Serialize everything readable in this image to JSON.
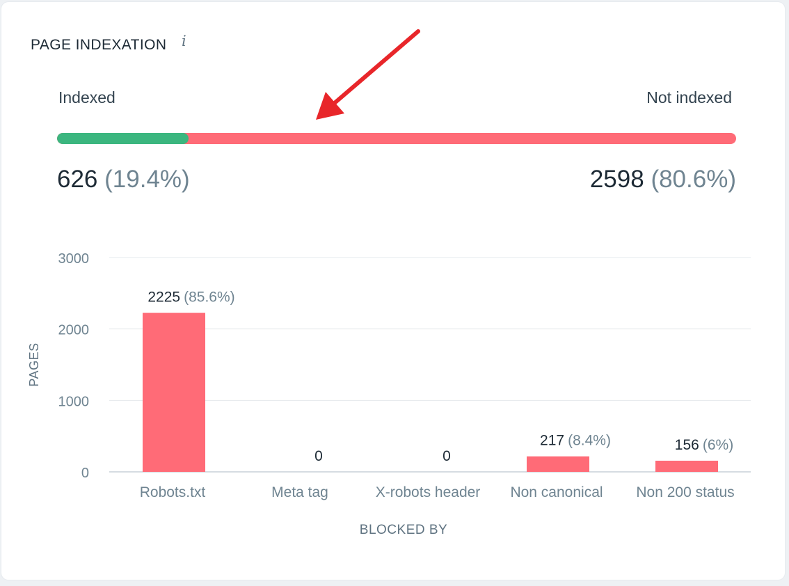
{
  "header": {
    "title": "PAGE INDEXATION",
    "info_icon": "info-icon"
  },
  "indexation": {
    "indexed_label": "Indexed",
    "not_indexed_label": "Not indexed",
    "indexed_fraction": 0.194,
    "indexed_count": "626",
    "indexed_pct": "(19.4%)",
    "not_indexed_count": "2598",
    "not_indexed_pct": "(80.6%)"
  },
  "colors": {
    "indexed": "#3bb67f",
    "not_indexed": "#ff6b77",
    "arrow": "#e8262a"
  },
  "chart_data": {
    "type": "bar",
    "categories": [
      "Robots.txt",
      "Meta tag",
      "X-robots header",
      "Non canonical",
      "Non 200 status"
    ],
    "values": [
      2225,
      0,
      0,
      217,
      156
    ],
    "value_labels": [
      "2225",
      "0",
      "0",
      "217",
      "156"
    ],
    "pct_labels": [
      "(85.6%)",
      "",
      "",
      "(8.4%)",
      "(6%)"
    ],
    "title": "",
    "xlabel": "BLOCKED BY",
    "ylabel": "PAGES",
    "ylim": [
      0,
      3000
    ],
    "yticks": [
      0,
      1000,
      2000,
      3000
    ],
    "grid": true,
    "legend": "none"
  }
}
